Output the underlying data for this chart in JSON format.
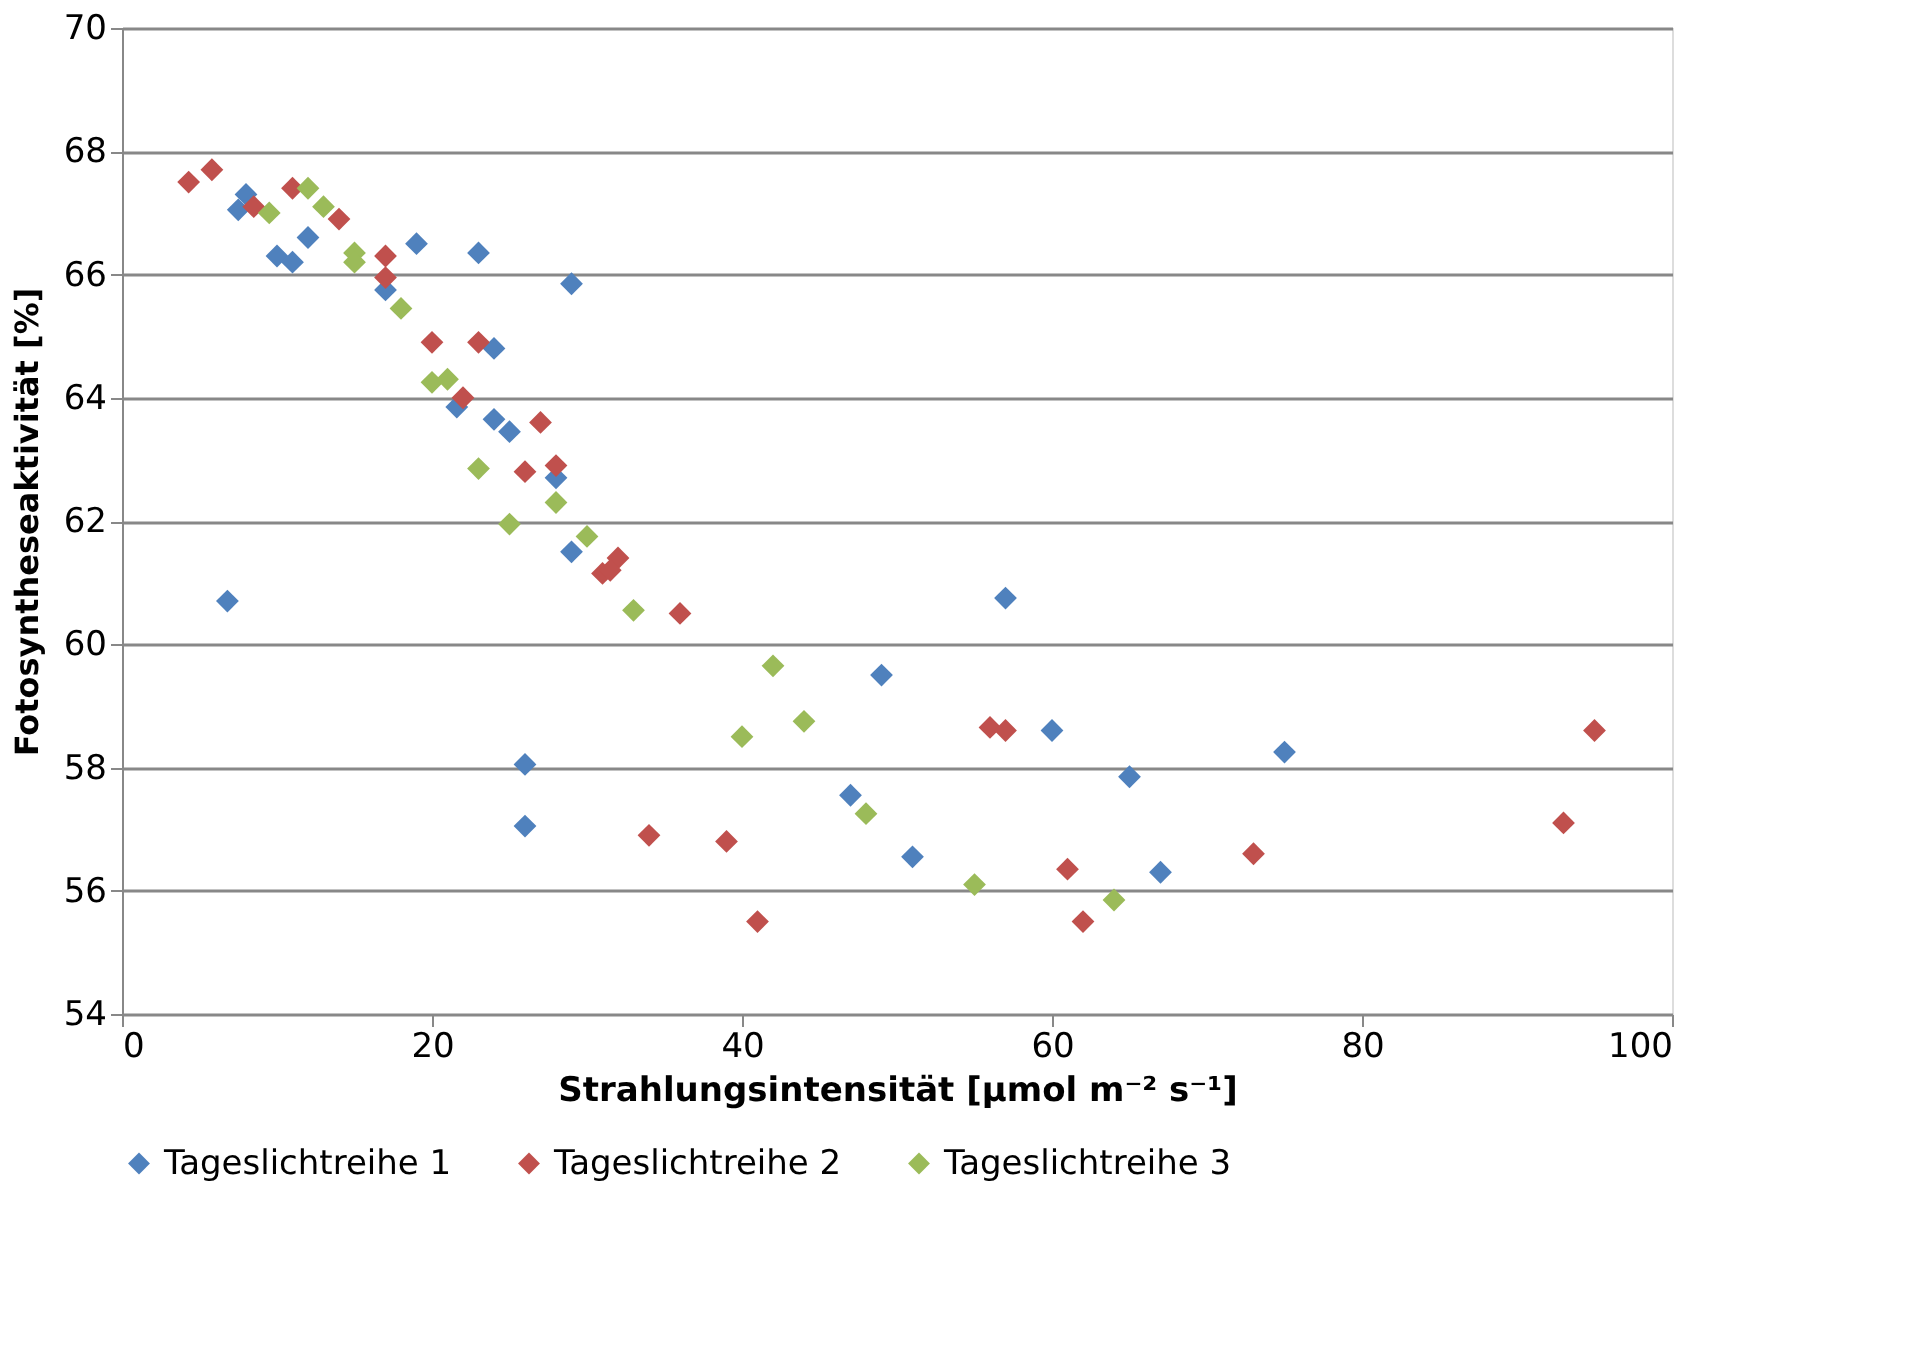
{
  "chart_data": {
    "type": "scatter",
    "xlabel": "Strahlungsintensität [µmol m⁻² s⁻¹]",
    "ylabel": "Fotosyntheseaktivität  [%]",
    "xlim": [
      0,
      100
    ],
    "xticks": [
      0,
      20,
      40,
      60,
      80,
      100
    ],
    "ylim": [
      54,
      70
    ],
    "yticks": [
      54,
      56,
      58,
      60,
      62,
      64,
      66,
      68,
      70
    ],
    "grid": "y",
    "legend": "bottom",
    "marker": "diamond",
    "series": [
      {
        "name": "Tageslichtreihe 1",
        "color": "#4f81bd",
        "x": [
          6.8,
          7.5,
          8,
          10,
          11,
          12,
          17,
          19,
          21.6,
          23,
          24,
          24,
          25,
          26,
          26,
          28,
          29,
          29,
          47,
          49,
          51,
          57,
          60,
          65,
          67,
          75
        ],
        "values": [
          60.7,
          67.05,
          67.3,
          66.3,
          66.2,
          66.6,
          65.75,
          66.5,
          63.85,
          66.35,
          64.8,
          63.65,
          63.45,
          58.05,
          57.05,
          62.7,
          65.85,
          61.5,
          57.55,
          59.5,
          56.55,
          60.75,
          58.6,
          57.85,
          56.3,
          58.25
        ]
      },
      {
        "name": "Tageslichtreihe 2",
        "color": "#c0504d",
        "x": [
          4.3,
          5.8,
          8.5,
          11,
          14,
          17,
          17,
          20,
          22,
          23,
          26,
          27,
          28,
          31,
          32,
          31.5,
          34,
          36,
          39,
          41,
          56,
          57,
          61,
          62,
          73,
          93,
          95
        ],
        "values": [
          67.5,
          67.7,
          67.1,
          67.4,
          66.9,
          66.3,
          65.95,
          64.9,
          64.0,
          64.9,
          62.8,
          63.6,
          62.9,
          61.15,
          61.4,
          61.2,
          56.9,
          60.5,
          56.8,
          55.5,
          58.65,
          58.6,
          56.35,
          55.5,
          56.6,
          57.1,
          58.6
        ]
      },
      {
        "name": "Tageslichtreihe 3",
        "color": "#9bbb59",
        "x": [
          9.5,
          12,
          13,
          15,
          15,
          18,
          20,
          21,
          23,
          25,
          28,
          30,
          33,
          40,
          42,
          44,
          48,
          55,
          64
        ],
        "values": [
          67.0,
          67.4,
          67.1,
          66.35,
          66.2,
          65.45,
          64.25,
          64.3,
          62.85,
          61.95,
          62.3,
          61.75,
          60.55,
          58.5,
          59.65,
          58.75,
          57.25,
          56.1,
          55.85
        ]
      }
    ]
  }
}
